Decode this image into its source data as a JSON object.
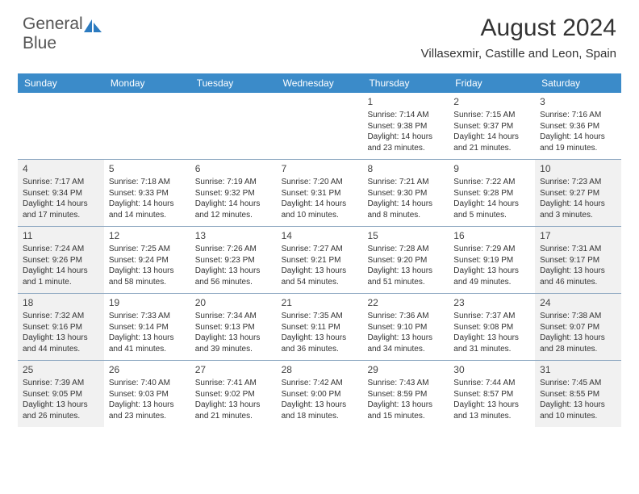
{
  "brand": {
    "name1": "General",
    "name2": "Blue"
  },
  "title": {
    "month_year": "August 2024",
    "location": "Villasexmir, Castille and Leon, Spain"
  },
  "colors": {
    "header_bg": "#3b8bc9",
    "header_text": "#ffffff",
    "divider": "#8fa9c2",
    "shaded_bg": "#f1f1f1",
    "text": "#333333",
    "brand_gray": "#555555",
    "brand_blue": "#2c7bc0"
  },
  "day_names": [
    "Sunday",
    "Monday",
    "Tuesday",
    "Wednesday",
    "Thursday",
    "Friday",
    "Saturday"
  ],
  "weeks": [
    [
      {
        "day": "",
        "shaded": false,
        "info": []
      },
      {
        "day": "",
        "shaded": false,
        "info": []
      },
      {
        "day": "",
        "shaded": false,
        "info": []
      },
      {
        "day": "",
        "shaded": false,
        "info": []
      },
      {
        "day": "1",
        "shaded": false,
        "info": [
          "Sunrise: 7:14 AM",
          "Sunset: 9:38 PM",
          "Daylight: 14 hours and 23 minutes."
        ]
      },
      {
        "day": "2",
        "shaded": false,
        "info": [
          "Sunrise: 7:15 AM",
          "Sunset: 9:37 PM",
          "Daylight: 14 hours and 21 minutes."
        ]
      },
      {
        "day": "3",
        "shaded": false,
        "info": [
          "Sunrise: 7:16 AM",
          "Sunset: 9:36 PM",
          "Daylight: 14 hours and 19 minutes."
        ]
      }
    ],
    [
      {
        "day": "4",
        "shaded": true,
        "info": [
          "Sunrise: 7:17 AM",
          "Sunset: 9:34 PM",
          "Daylight: 14 hours and 17 minutes."
        ]
      },
      {
        "day": "5",
        "shaded": false,
        "info": [
          "Sunrise: 7:18 AM",
          "Sunset: 9:33 PM",
          "Daylight: 14 hours and 14 minutes."
        ]
      },
      {
        "day": "6",
        "shaded": false,
        "info": [
          "Sunrise: 7:19 AM",
          "Sunset: 9:32 PM",
          "Daylight: 14 hours and 12 minutes."
        ]
      },
      {
        "day": "7",
        "shaded": false,
        "info": [
          "Sunrise: 7:20 AM",
          "Sunset: 9:31 PM",
          "Daylight: 14 hours and 10 minutes."
        ]
      },
      {
        "day": "8",
        "shaded": false,
        "info": [
          "Sunrise: 7:21 AM",
          "Sunset: 9:30 PM",
          "Daylight: 14 hours and 8 minutes."
        ]
      },
      {
        "day": "9",
        "shaded": false,
        "info": [
          "Sunrise: 7:22 AM",
          "Sunset: 9:28 PM",
          "Daylight: 14 hours and 5 minutes."
        ]
      },
      {
        "day": "10",
        "shaded": true,
        "info": [
          "Sunrise: 7:23 AM",
          "Sunset: 9:27 PM",
          "Daylight: 14 hours and 3 minutes."
        ]
      }
    ],
    [
      {
        "day": "11",
        "shaded": true,
        "info": [
          "Sunrise: 7:24 AM",
          "Sunset: 9:26 PM",
          "Daylight: 14 hours and 1 minute."
        ]
      },
      {
        "day": "12",
        "shaded": false,
        "info": [
          "Sunrise: 7:25 AM",
          "Sunset: 9:24 PM",
          "Daylight: 13 hours and 58 minutes."
        ]
      },
      {
        "day": "13",
        "shaded": false,
        "info": [
          "Sunrise: 7:26 AM",
          "Sunset: 9:23 PM",
          "Daylight: 13 hours and 56 minutes."
        ]
      },
      {
        "day": "14",
        "shaded": false,
        "info": [
          "Sunrise: 7:27 AM",
          "Sunset: 9:21 PM",
          "Daylight: 13 hours and 54 minutes."
        ]
      },
      {
        "day": "15",
        "shaded": false,
        "info": [
          "Sunrise: 7:28 AM",
          "Sunset: 9:20 PM",
          "Daylight: 13 hours and 51 minutes."
        ]
      },
      {
        "day": "16",
        "shaded": false,
        "info": [
          "Sunrise: 7:29 AM",
          "Sunset: 9:19 PM",
          "Daylight: 13 hours and 49 minutes."
        ]
      },
      {
        "day": "17",
        "shaded": true,
        "info": [
          "Sunrise: 7:31 AM",
          "Sunset: 9:17 PM",
          "Daylight: 13 hours and 46 minutes."
        ]
      }
    ],
    [
      {
        "day": "18",
        "shaded": true,
        "info": [
          "Sunrise: 7:32 AM",
          "Sunset: 9:16 PM",
          "Daylight: 13 hours and 44 minutes."
        ]
      },
      {
        "day": "19",
        "shaded": false,
        "info": [
          "Sunrise: 7:33 AM",
          "Sunset: 9:14 PM",
          "Daylight: 13 hours and 41 minutes."
        ]
      },
      {
        "day": "20",
        "shaded": false,
        "info": [
          "Sunrise: 7:34 AM",
          "Sunset: 9:13 PM",
          "Daylight: 13 hours and 39 minutes."
        ]
      },
      {
        "day": "21",
        "shaded": false,
        "info": [
          "Sunrise: 7:35 AM",
          "Sunset: 9:11 PM",
          "Daylight: 13 hours and 36 minutes."
        ]
      },
      {
        "day": "22",
        "shaded": false,
        "info": [
          "Sunrise: 7:36 AM",
          "Sunset: 9:10 PM",
          "Daylight: 13 hours and 34 minutes."
        ]
      },
      {
        "day": "23",
        "shaded": false,
        "info": [
          "Sunrise: 7:37 AM",
          "Sunset: 9:08 PM",
          "Daylight: 13 hours and 31 minutes."
        ]
      },
      {
        "day": "24",
        "shaded": true,
        "info": [
          "Sunrise: 7:38 AM",
          "Sunset: 9:07 PM",
          "Daylight: 13 hours and 28 minutes."
        ]
      }
    ],
    [
      {
        "day": "25",
        "shaded": true,
        "info": [
          "Sunrise: 7:39 AM",
          "Sunset: 9:05 PM",
          "Daylight: 13 hours and 26 minutes."
        ]
      },
      {
        "day": "26",
        "shaded": false,
        "info": [
          "Sunrise: 7:40 AM",
          "Sunset: 9:03 PM",
          "Daylight: 13 hours and 23 minutes."
        ]
      },
      {
        "day": "27",
        "shaded": false,
        "info": [
          "Sunrise: 7:41 AM",
          "Sunset: 9:02 PM",
          "Daylight: 13 hours and 21 minutes."
        ]
      },
      {
        "day": "28",
        "shaded": false,
        "info": [
          "Sunrise: 7:42 AM",
          "Sunset: 9:00 PM",
          "Daylight: 13 hours and 18 minutes."
        ]
      },
      {
        "day": "29",
        "shaded": false,
        "info": [
          "Sunrise: 7:43 AM",
          "Sunset: 8:59 PM",
          "Daylight: 13 hours and 15 minutes."
        ]
      },
      {
        "day": "30",
        "shaded": false,
        "info": [
          "Sunrise: 7:44 AM",
          "Sunset: 8:57 PM",
          "Daylight: 13 hours and 13 minutes."
        ]
      },
      {
        "day": "31",
        "shaded": true,
        "info": [
          "Sunrise: 7:45 AM",
          "Sunset: 8:55 PM",
          "Daylight: 13 hours and 10 minutes."
        ]
      }
    ]
  ]
}
